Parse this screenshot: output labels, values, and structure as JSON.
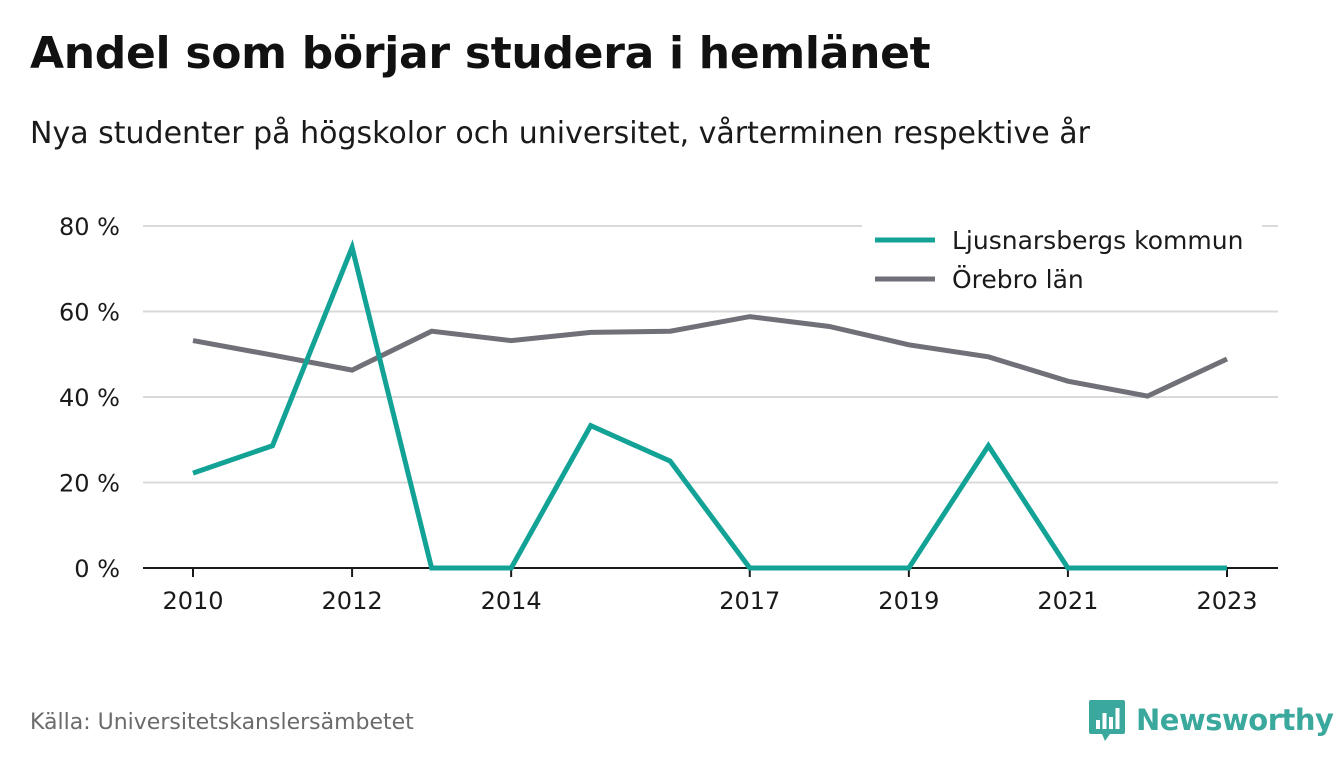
{
  "header": {
    "title": "Andel som börjar studera i hemlänet",
    "subtitle": "Nya studenter på högskolor och universitet, vårterminen respektive år"
  },
  "footer": {
    "source": "Källa: Universitetskanslersämbetet",
    "brand": "Newsworthy",
    "brand_icon": "bar-chart-bubble-icon"
  },
  "colors": {
    "series_1": "#13a396",
    "series_2": "#707078",
    "grid": "#d9d9d9",
    "axis": "#1a1a1a",
    "brand": "#3aa89c"
  },
  "chart_data": {
    "type": "line",
    "x": [
      2010,
      2011,
      2012,
      2013,
      2014,
      2015,
      2016,
      2017,
      2018,
      2019,
      2020,
      2021,
      2022,
      2023
    ],
    "x_ticks": [
      2010,
      2012,
      2014,
      2017,
      2019,
      2021,
      2023
    ],
    "x_tick_labels": [
      "2010",
      "2012",
      "2014",
      "2017",
      "2019",
      "2021",
      "2023"
    ],
    "y_ticks": [
      0,
      20,
      40,
      60,
      80
    ],
    "y_tick_labels": [
      "0 %",
      "20 %",
      "40 %",
      "60 %",
      "80 %"
    ],
    "ylim": [
      0,
      80
    ],
    "grid": true,
    "legend_position": "top-right",
    "series": [
      {
        "name": "Ljusnarsbergs kommun",
        "color": "#13a396",
        "values": [
          22.2,
          28.6,
          75.0,
          0,
          0,
          33.3,
          25.0,
          0,
          0,
          0,
          28.6,
          0,
          0,
          0
        ]
      },
      {
        "name": "Örebro län",
        "color": "#707078",
        "values": [
          53.2,
          49.8,
          46.3,
          55.4,
          53.2,
          55.1,
          55.4,
          58.8,
          56.5,
          52.2,
          49.4,
          43.7,
          40.2,
          48.9
        ]
      }
    ]
  }
}
